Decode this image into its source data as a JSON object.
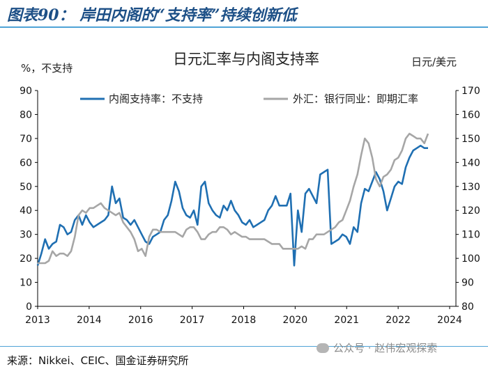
{
  "figure_title": "图表90： 岸田内阁的“支持率”持续创新低",
  "source": "来源：Nikkei、CEIC、国金证券研究所",
  "watermark": "公众号 · 赵伟宏观探索",
  "chart_data": {
    "type": "line",
    "title": "日元汇率与内阁支持率",
    "ylabel": "%，不支持",
    "y2label": "日元/美元",
    "ylim": [
      0,
      90
    ],
    "y2lim": [
      80,
      170
    ],
    "xlim": [
      2013.0,
      2024.25
    ],
    "x_ticks": [
      "2013",
      "2014",
      "2016",
      "2017",
      "2018",
      "2020",
      "2021",
      "2022",
      "2024"
    ],
    "y_ticks": [
      "0",
      "10",
      "20",
      "30",
      "40",
      "50",
      "60",
      "70",
      "80",
      "90"
    ],
    "y2_ticks": [
      "80",
      "90",
      "100",
      "110",
      "120",
      "130",
      "140",
      "150",
      "160",
      "170"
    ],
    "legend_position": "top",
    "grid": false,
    "series": [
      {
        "name": "内阁支持率：不支持",
        "axis": "left",
        "color": "#1f6fb2",
        "x": [
          2013.0,
          2013.1,
          2013.2,
          2013.3,
          2013.4,
          2013.5,
          2013.6,
          2013.7,
          2013.8,
          2013.9,
          2014.0,
          2014.1,
          2014.2,
          2014.3,
          2014.4,
          2014.5,
          2014.6,
          2014.7,
          2014.8,
          2014.9,
          2015.0,
          2015.1,
          2015.2,
          2015.3,
          2015.4,
          2015.5,
          2015.6,
          2015.7,
          2015.8,
          2015.9,
          2016.0,
          2016.1,
          2016.2,
          2016.3,
          2016.4,
          2016.5,
          2016.6,
          2016.7,
          2016.8,
          2016.9,
          2017.0,
          2017.1,
          2017.2,
          2017.3,
          2017.4,
          2017.5,
          2017.6,
          2017.7,
          2017.8,
          2017.9,
          2018.0,
          2018.1,
          2018.2,
          2018.3,
          2018.4,
          2018.5,
          2018.6,
          2018.7,
          2018.8,
          2018.9,
          2019.0,
          2019.1,
          2019.2,
          2019.3,
          2019.4,
          2019.5,
          2019.6,
          2019.7,
          2019.8,
          2019.9,
          2020.0,
          2020.1,
          2020.2,
          2020.3,
          2020.4,
          2020.5,
          2020.6,
          2020.7,
          2020.8,
          2020.9,
          2021.0,
          2021.1,
          2021.2,
          2021.3,
          2021.4,
          2021.5,
          2021.6,
          2021.7,
          2021.8,
          2021.9,
          2022.0,
          2022.1,
          2022.2,
          2022.3,
          2022.4,
          2022.5,
          2022.6,
          2022.7,
          2022.8,
          2022.9,
          2023.0,
          2023.1,
          2023.2,
          2023.3,
          2023.4,
          2023.5,
          2023.6,
          2023.7,
          2023.8,
          2023.9,
          2024.0,
          2024.1
        ],
        "values": [
          17,
          22,
          28,
          24,
          26,
          27,
          34,
          33,
          30,
          31,
          36,
          38,
          34,
          38,
          35,
          33,
          34,
          35,
          36,
          38,
          50,
          43,
          45,
          37,
          36,
          34,
          36,
          33,
          30,
          27,
          26,
          29,
          30,
          31,
          36,
          38,
          44,
          52,
          48,
          41,
          38,
          37,
          40,
          34,
          50,
          52,
          43,
          40,
          38,
          37,
          42,
          40,
          44,
          40,
          38,
          35,
          34,
          36,
          33,
          34,
          35,
          36,
          40,
          42,
          46,
          42,
          42,
          42,
          47,
          17,
          40,
          31,
          47,
          49,
          46,
          43,
          55,
          56,
          57,
          26,
          27,
          28,
          30,
          29,
          26,
          33,
          31,
          43,
          49,
          48,
          52,
          56,
          53,
          48,
          40,
          45,
          50,
          52,
          51,
          58,
          62,
          65,
          66,
          67,
          66,
          66,
          null,
          null,
          null,
          null,
          null,
          null
        ],
        "values_note": "monthly-approx sampled"
      },
      {
        "name": "外汇：银行同业：即期汇率",
        "axis": "right",
        "color": "#a6a6a6",
        "x": [
          2013.0,
          2013.1,
          2013.2,
          2013.3,
          2013.4,
          2013.5,
          2013.6,
          2013.7,
          2013.8,
          2013.9,
          2014.0,
          2014.1,
          2014.2,
          2014.3,
          2014.4,
          2014.5,
          2014.6,
          2014.7,
          2014.8,
          2014.9,
          2015.0,
          2015.1,
          2015.2,
          2015.3,
          2015.4,
          2015.5,
          2015.6,
          2015.7,
          2015.8,
          2015.9,
          2016.0,
          2016.1,
          2016.2,
          2016.3,
          2016.4,
          2016.5,
          2016.6,
          2016.7,
          2016.8,
          2016.9,
          2017.0,
          2017.1,
          2017.2,
          2017.3,
          2017.4,
          2017.5,
          2017.6,
          2017.7,
          2017.8,
          2017.9,
          2018.0,
          2018.1,
          2018.2,
          2018.3,
          2018.4,
          2018.5,
          2018.6,
          2018.7,
          2018.8,
          2018.9,
          2019.0,
          2019.1,
          2019.2,
          2019.3,
          2019.4,
          2019.5,
          2019.6,
          2019.7,
          2019.8,
          2019.9,
          2020.0,
          2020.1,
          2020.2,
          2020.3,
          2020.4,
          2020.5,
          2020.6,
          2020.7,
          2020.8,
          2020.9,
          2021.0,
          2021.1,
          2021.2,
          2021.3,
          2021.4,
          2021.5,
          2021.6,
          2021.7,
          2021.8,
          2021.9,
          2022.0,
          2022.1,
          2022.2,
          2022.3,
          2022.4,
          2022.5,
          2022.6,
          2022.7,
          2022.8,
          2022.9,
          2023.0,
          2023.1,
          2023.2,
          2023.3,
          2023.4,
          2023.5,
          2023.6,
          2023.7,
          2023.8,
          2023.9,
          2024.0,
          2024.1
        ],
        "values": [
          98,
          98,
          98,
          99,
          103,
          101,
          102,
          102,
          101,
          103,
          109,
          118,
          120,
          119,
          121,
          121,
          122,
          123,
          121,
          120,
          119,
          118,
          119,
          115,
          113,
          111,
          108,
          103,
          104,
          101,
          109,
          112,
          112,
          111,
          111,
          111,
          111,
          111,
          110,
          109,
          112,
          113,
          113,
          111,
          108,
          108,
          110,
          111,
          111,
          113,
          113,
          112,
          110,
          111,
          110,
          109,
          109,
          108,
          108,
          108,
          108,
          108,
          107,
          106,
          106,
          106,
          104,
          104,
          104,
          104,
          104,
          105,
          104,
          108,
          108,
          110,
          110,
          110,
          111,
          112,
          113,
          115,
          116,
          120,
          124,
          130,
          135,
          143,
          150,
          148,
          142,
          133,
          130,
          134,
          135,
          137,
          141,
          142,
          145,
          150,
          152,
          151,
          150,
          150,
          148,
          152,
          null,
          null,
          null,
          null,
          null,
          null
        ],
        "values_note": "monthly-approx sampled"
      }
    ]
  }
}
